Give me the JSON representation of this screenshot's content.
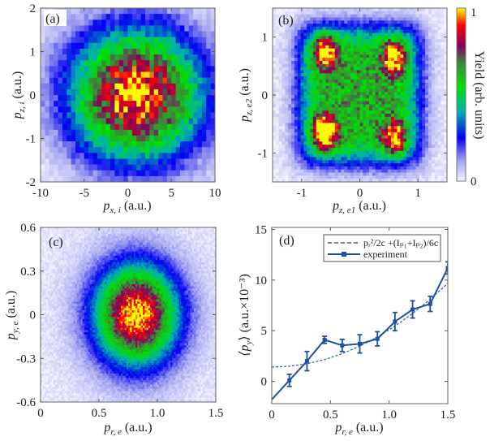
{
  "chart_data": [
    {
      "type": "heatmap",
      "panel": "(a)",
      "xlabel": {
        "symbol": "p",
        "sub": "x, i",
        "unit": "(a.u.)"
      },
      "ylabel": {
        "symbol": "p",
        "sub": "z, i",
        "unit": "(a.u.)"
      },
      "xlim": [
        -10,
        10
      ],
      "ylim": [
        -2,
        2
      ],
      "xticks": [
        "-10",
        "-5",
        "0",
        "5",
        "10"
      ],
      "yticks": [
        "-2",
        "-1",
        "0",
        "1",
        "2"
      ],
      "zlim": [
        0,
        1
      ],
      "peak_locations": [
        {
          "x": 1,
          "y": 0
        }
      ]
    },
    {
      "type": "heatmap",
      "panel": "(b)",
      "xlabel": {
        "symbol": "p",
        "sub": "z, e1",
        "unit": "(a.u.)"
      },
      "ylabel": {
        "symbol": "p",
        "sub": "z, e2",
        "unit": "(a.u.)"
      },
      "xlim": [
        -1.5,
        1.5
      ],
      "ylim": [
        -1.5,
        1.5
      ],
      "xticks": [
        "-1",
        "0",
        "1"
      ],
      "yticks": [
        "-1",
        "0",
        "1"
      ],
      "zlim": [
        0,
        1
      ],
      "peak_locations": [
        {
          "x": -0.6,
          "y": 0.75
        },
        {
          "x": 0.6,
          "y": 0.65
        },
        {
          "x": -0.6,
          "y": -0.65
        },
        {
          "x": 0.6,
          "y": -0.75
        }
      ],
      "colorbar": {
        "label": "Yield (arb. units)",
        "min_label": "0",
        "max_label": "1",
        "colors": [
          "#f4f4ff",
          "#a0a0f0",
          "#0000f0",
          "#00b0b0",
          "#00e000",
          "#3a8a3a",
          "#800060",
          "#ff0000",
          "#ffff00"
        ]
      }
    },
    {
      "type": "heatmap",
      "panel": "(c)",
      "xlabel": {
        "symbol": "p",
        "sub": "r, e",
        "unit": "(a.u.)"
      },
      "ylabel": {
        "symbol": "p",
        "sub": "y, e",
        "unit": "(a.u.)"
      },
      "xlim": [
        0,
        1.5
      ],
      "ylim": [
        -0.6,
        0.6
      ],
      "xticks": [
        "0",
        "0.5",
        "1.0",
        "1.5"
      ],
      "yticks": [
        "-0.6",
        "-0.3",
        "0",
        "0.3",
        "0.6"
      ],
      "zlim": [
        0,
        1
      ],
      "peak_locations": [
        {
          "x": 0.82,
          "y": 0
        }
      ]
    },
    {
      "type": "line",
      "panel": "(d)",
      "xlabel": {
        "symbol": "p",
        "sub": "r, e",
        "unit": "(a.u.)"
      },
      "ylabel": {
        "symbol": "⟨p",
        "sub": "y",
        "close": "⟩",
        "unit": "(a.u.×10⁻³)"
      },
      "xlim": [
        0,
        1.5
      ],
      "ylim": [
        -2.2,
        15.2
      ],
      "xticks": [
        "0",
        "0.5",
        "1.0",
        "1.5"
      ],
      "yticks": [
        "0",
        "5",
        "10",
        "15"
      ],
      "legend_position": "top-right",
      "series": [
        {
          "name": "pᵣ²/2c +(Iₚ₁+Iₚ₂)/6c",
          "style": "dashed",
          "color": "#2a5db0",
          "x": [
            0,
            0.15,
            0.3,
            0.45,
            0.6,
            0.75,
            0.9,
            1.05,
            1.2,
            1.35,
            1.5
          ],
          "y": [
            1.41,
            1.49,
            1.74,
            2.15,
            2.73,
            3.48,
            4.38,
            5.46,
            6.7,
            8.1,
            9.68
          ]
        },
        {
          "name": "experiment",
          "style": "solid-square-markers",
          "color": "#1f4fa3",
          "x": [
            0.15,
            0.3,
            0.45,
            0.6,
            0.75,
            0.9,
            1.05,
            1.2,
            1.35,
            1.5
          ],
          "y": [
            0.1,
            2.0,
            4.1,
            3.55,
            3.7,
            4.2,
            5.9,
            7.1,
            7.65,
            11.2
          ],
          "error": [
            0.6,
            0.95,
            0.35,
            0.6,
            0.9,
            0.7,
            0.9,
            0.85,
            0.75,
            0.6
          ]
        }
      ]
    }
  ]
}
